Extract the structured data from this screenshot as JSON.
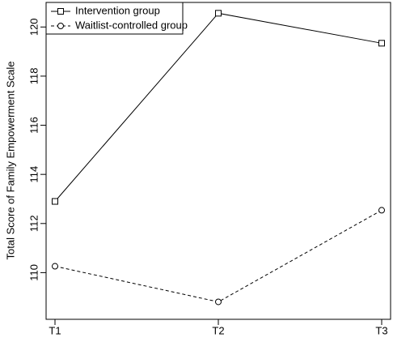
{
  "chart_data": {
    "type": "line",
    "y_label": "Total Score of Family Empowerment Scale",
    "categories": [
      "T1",
      "T2",
      "T3"
    ],
    "series": [
      {
        "name": "Intervention group",
        "color": "#000000",
        "line_style": "solid",
        "marker": "square",
        "values": [
          112.9,
          120.56,
          119.34
        ]
      },
      {
        "name": "Waitlist-controlled group",
        "color": "#000000",
        "line_style": "dashed",
        "marker": "circle",
        "values": [
          110.26,
          108.81,
          112.54
        ]
      }
    ],
    "ylim": [
      108.1,
      121.0
    ],
    "yticks": [
      110,
      112,
      114,
      116,
      118,
      120
    ],
    "legend": "top-left"
  }
}
